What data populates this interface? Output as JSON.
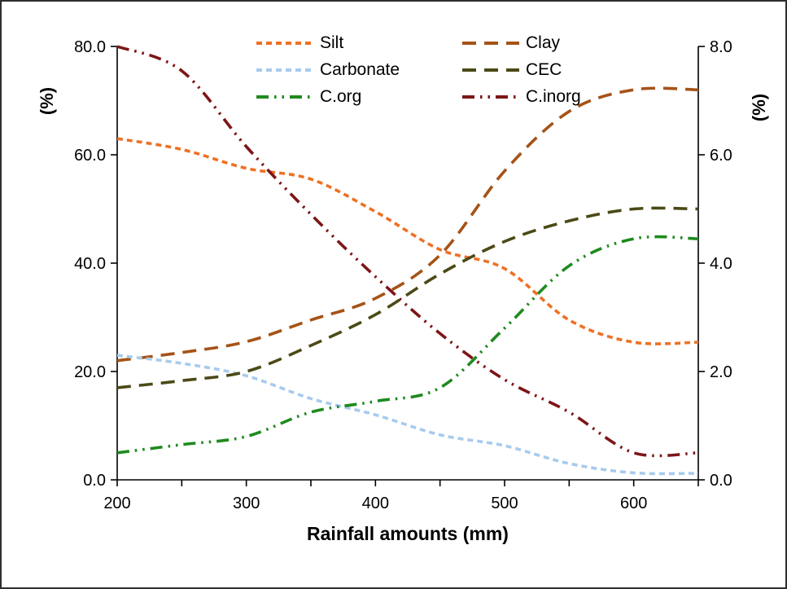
{
  "figure": {
    "background": "#ffffff",
    "border_color": "#2e2e2e",
    "axis_color": "#000000"
  },
  "chart_data": {
    "type": "line",
    "title": "",
    "xlabel": "Rainfall amounts (mm)",
    "ylabel_left": "(%)",
    "ylabel_right": "(%)",
    "grid": false,
    "legend_position": "top-center",
    "x": [
      200,
      250,
      300,
      350,
      400,
      450,
      500,
      550,
      600,
      650
    ],
    "xlim": [
      200,
      650
    ],
    "x_minor_tick_step": 50,
    "x_tick_labels": [
      "200",
      "300",
      "400",
      "500",
      "600"
    ],
    "x_tick_label_values": [
      200,
      300,
      400,
      500,
      600
    ],
    "ylim_left": [
      0,
      80
    ],
    "ytick_values_left": [
      0,
      20,
      40,
      60,
      80
    ],
    "ytick_labels_left": [
      "0.0",
      "20.0",
      "40.0",
      "60.0",
      "80.0"
    ],
    "ylim_right": [
      0,
      8
    ],
    "ytick_values_right": [
      0,
      2,
      4,
      6,
      8
    ],
    "ytick_labels_right": [
      "0.0",
      "2.0",
      "4.0",
      "6.0",
      "8.0"
    ],
    "series": [
      {
        "name": "Silt",
        "axis": "left",
        "color": "#ED7125",
        "dash": "short",
        "values": [
          63,
          61,
          57.5,
          55.5,
          49.5,
          42.5,
          39,
          29.5,
          25.4,
          25.4
        ]
      },
      {
        "name": "Clay",
        "axis": "left",
        "color": "#A55317",
        "dash": "long",
        "values": [
          22,
          23.5,
          25.5,
          29.5,
          33.5,
          41.5,
          57,
          68,
          72,
          72
        ]
      },
      {
        "name": "Carbonate",
        "axis": "left",
        "color": "#A7CBEE",
        "dash": "short",
        "values": [
          23,
          21.5,
          19.2,
          15,
          12,
          8.3,
          6.3,
          3,
          1.3,
          1.2
        ]
      },
      {
        "name": "CEC",
        "axis": "left",
        "color": "#4B4A17",
        "dash": "long",
        "values": [
          17,
          18.3,
          20,
          24.8,
          30.5,
          38,
          44,
          47.8,
          50,
          50
        ]
      },
      {
        "name": "C.org",
        "axis": "right",
        "color": "#1E8A1E",
        "dash": "dashdotdot",
        "values": [
          0.5,
          0.65,
          0.8,
          1.25,
          1.45,
          1.7,
          2.8,
          3.95,
          4.45,
          4.45
        ]
      },
      {
        "name": "C.inorg",
        "axis": "right",
        "color": "#7D1517",
        "dash": "dashdotdot",
        "values": [
          8.0,
          7.55,
          6.15,
          4.9,
          3.75,
          2.7,
          1.85,
          1.25,
          0.5,
          0.5
        ]
      }
    ],
    "legend_columns": [
      [
        "Silt",
        "Carbonate",
        "C.org"
      ],
      [
        "Clay",
        "CEC",
        "C.inorg"
      ]
    ]
  }
}
